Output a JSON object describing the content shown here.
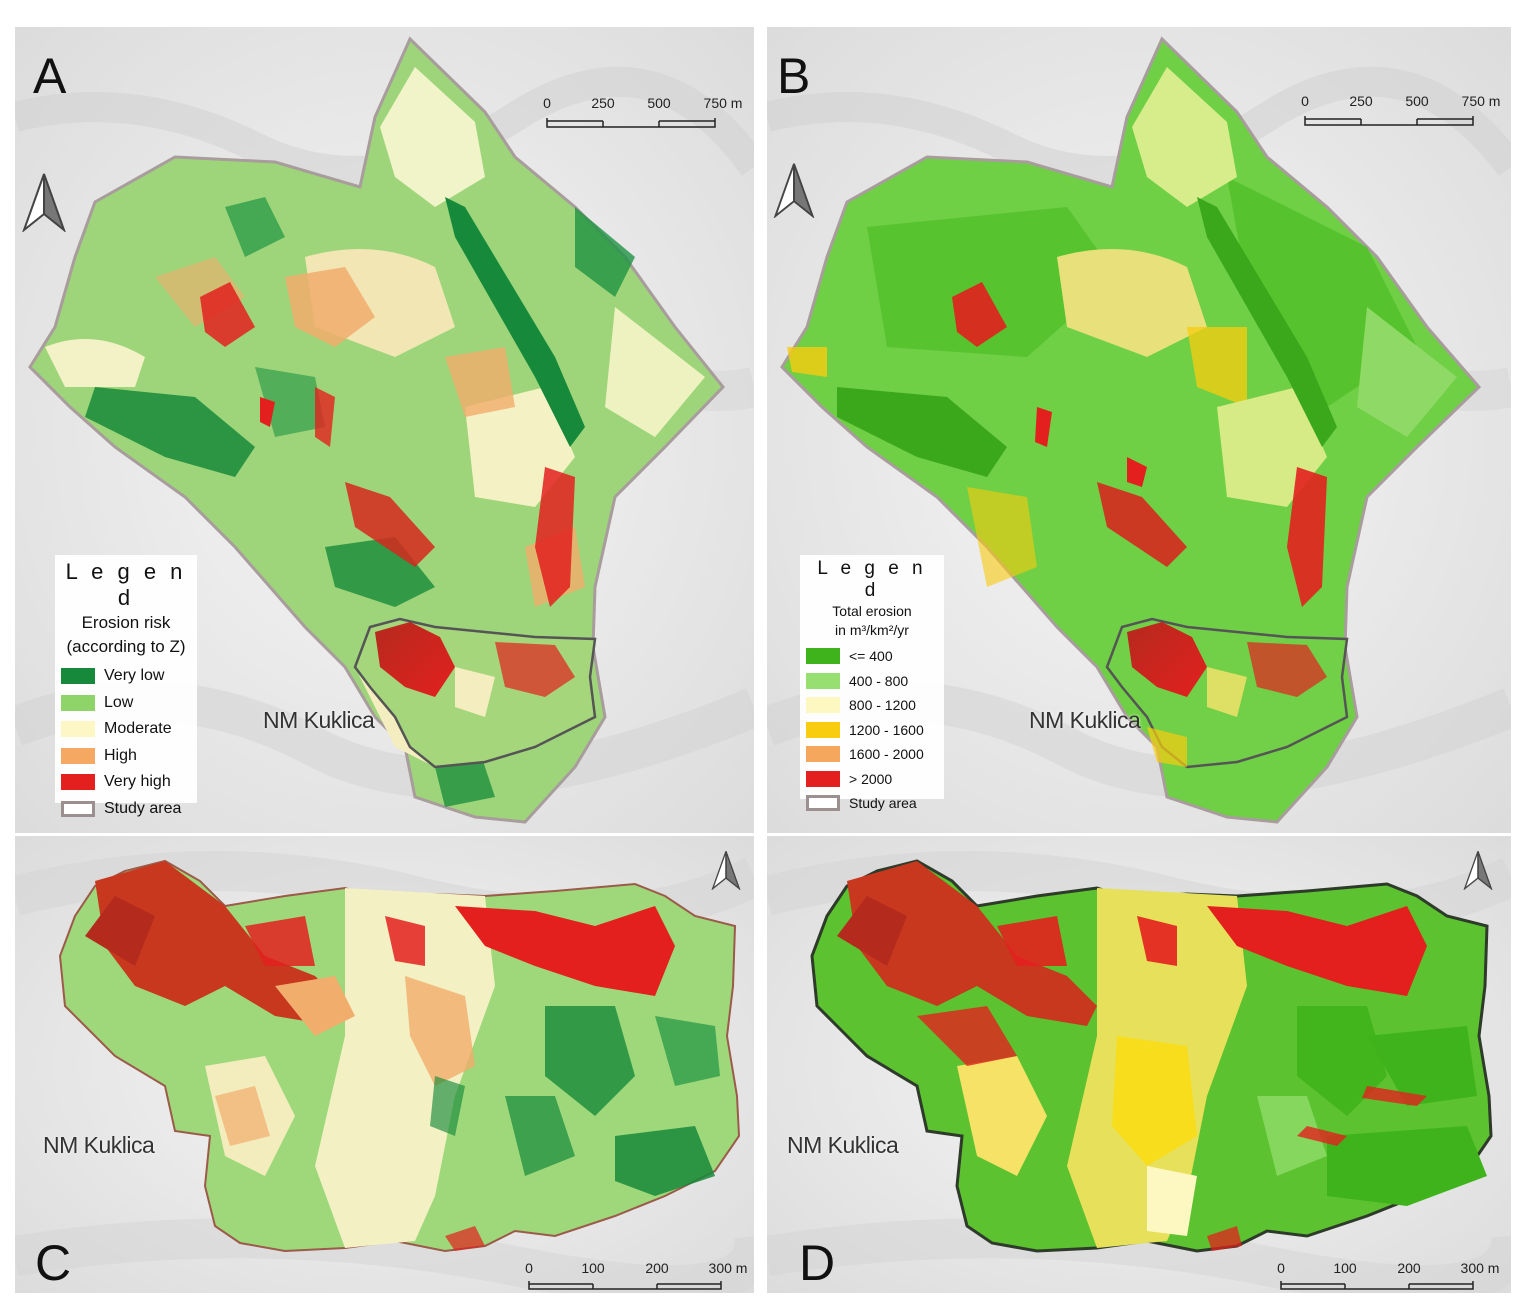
{
  "panels": [
    {
      "id": "A",
      "label": "A"
    },
    {
      "id": "B",
      "label": "B"
    },
    {
      "id": "C",
      "label": "C"
    },
    {
      "id": "D",
      "label": "D"
    }
  ],
  "town_label": "NM Kuklica",
  "scale_top": {
    "ticks": [
      "0",
      "250",
      "500",
      "750 m"
    ]
  },
  "scale_bottom": {
    "ticks": [
      "0",
      "100",
      "200",
      "300 m"
    ]
  },
  "legend_a": {
    "title": "L e g e n d",
    "subtitle_1": "Erosion risk",
    "subtitle_2": "(according to Z)",
    "items": [
      {
        "label": "Very low",
        "color": "#168a3a"
      },
      {
        "label": "Low",
        "color": "#8fd468"
      },
      {
        "label": "Moderate",
        "color": "#fcf7c4"
      },
      {
        "label": "High",
        "color": "#f4a862"
      },
      {
        "label": "Very high",
        "color": "#e3201e"
      },
      {
        "label": "Study area",
        "color": "#ffffff",
        "outline": "#9b8f8f"
      }
    ]
  },
  "legend_b": {
    "title": "L e g e n d",
    "subtitle_1": "Total erosion",
    "subtitle_2": "in m³/km²/yr",
    "items": [
      {
        "label": "<= 400",
        "color": "#3fb31b"
      },
      {
        "label": "400 - 800",
        "color": "#97df70"
      },
      {
        "label": "800 - 1200",
        "color": "#fdf8c2"
      },
      {
        "label": "1200 - 1600",
        "color": "#f8cc0f"
      },
      {
        "label": "1600 - 2000",
        "color": "#f6a75e"
      },
      {
        "label": "> 2000",
        "color": "#e3201e"
      },
      {
        "label": "Study area",
        "color": "#ffffff",
        "outline": "#9b8f8f"
      }
    ]
  }
}
